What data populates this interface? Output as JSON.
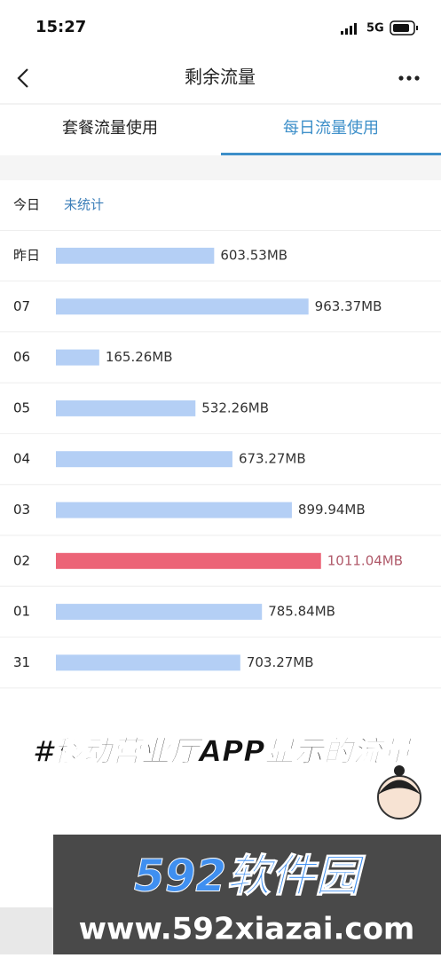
{
  "status_bar": {
    "time": "15:27",
    "network": "5G"
  },
  "nav": {
    "title": "剩余流量"
  },
  "tabs": [
    "套餐流量使用",
    "每日流量使用"
  ],
  "active_tab": 1,
  "today": {
    "label": "今日",
    "status": "未统计"
  },
  "usage": {
    "categories": [
      "昨日",
      "07",
      "06",
      "05",
      "04",
      "03",
      "02",
      "01",
      "31"
    ],
    "values": [
      603.53,
      963.37,
      165.26,
      532.26,
      673.27,
      899.94,
      1011.04,
      785.84,
      703.27
    ],
    "value_labels": [
      "603.53MB",
      "963.37MB",
      "165.26MB",
      "532.26MB",
      "673.27MB",
      "899.94MB",
      "1011.04MB",
      "785.84MB",
      "703.27MB"
    ],
    "color": "#b4cff5",
    "highlight_color": "#ec6477",
    "highlight_index": 6
  },
  "caption": "#移动营业厅APP显示的流量",
  "watermark": {
    "brand": "592软件园",
    "url": "www.592xiazai.com"
  }
}
